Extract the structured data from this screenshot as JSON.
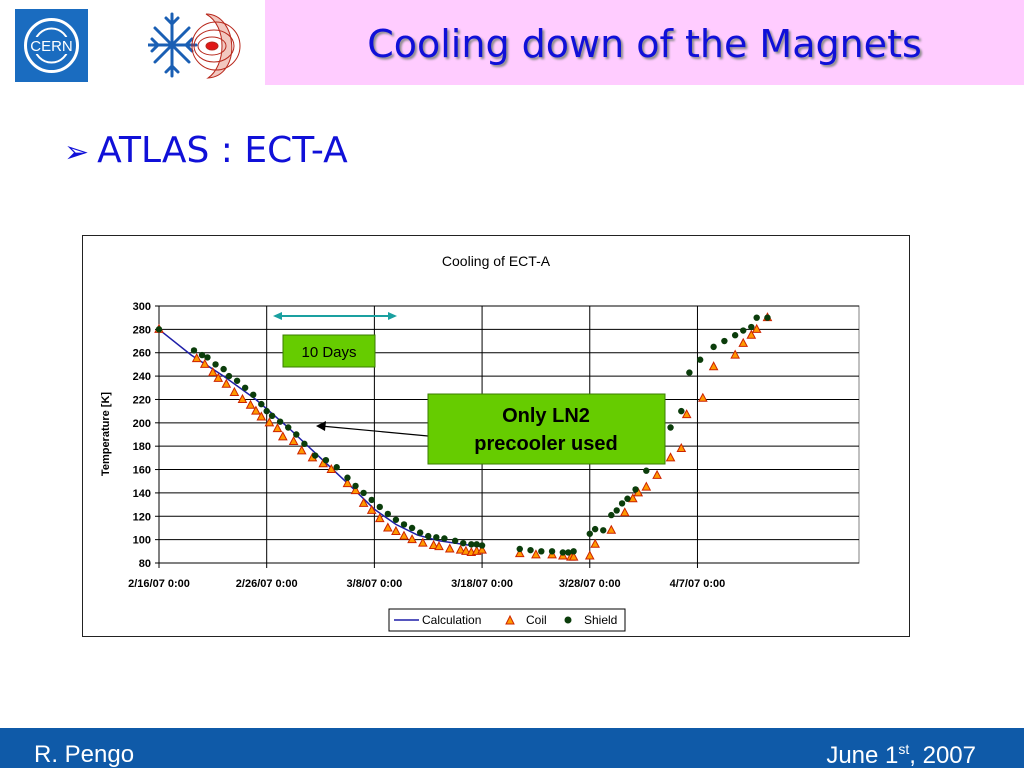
{
  "slide": {
    "title": "Cooling down of the Magnets",
    "bullet": "ATLAS : ECT-A",
    "footer_left": "R. Pengo",
    "footer_right_pre": "June 1",
    "footer_right_sup": "st",
    "footer_right_post": ", 2007",
    "logo_text": "CERN",
    "title_color": "#1010d8",
    "title_band_color": "#ffccff",
    "footer_color": "#0f5aa8"
  },
  "annotations": {
    "days_label": "10 Days",
    "ln2_line1": "Only LN2",
    "ln2_line2": "precooler used",
    "days_box_color": "#66cc00",
    "ln2_box_color": "#66cc00"
  },
  "chart_data": {
    "type": "scatter",
    "title": "Cooling of ECT-A",
    "xlabel": "",
    "ylabel": "Temperature [K]",
    "x_ticks": [
      "2/16/07 0:00",
      "2/26/07 0:00",
      "3/8/07 0:00",
      "3/18/07 0:00",
      "3/28/07 0:00",
      "4/7/07 0:00"
    ],
    "xlim": [
      "2/16/07 0:00",
      "4/22/07 0:00"
    ],
    "ylim": [
      80,
      300
    ],
    "y_ticks": [
      80,
      100,
      120,
      140,
      160,
      180,
      200,
      220,
      240,
      260,
      280,
      300
    ],
    "grid": true,
    "legend_position": "bottom-center",
    "series": [
      {
        "name": "Calculation",
        "style": "line",
        "color": "#1f1fa8",
        "x": [
          "2/16/07 0:00",
          "2/19/07 0:00",
          "2/22/07 0:00",
          "2/25/07 0:00",
          "2/28/07 0:00",
          "3/3/07 0:00",
          "3/6/07 0:00",
          "3/8/07 0:00",
          "3/10/07 0:00",
          "3/12/07 0:00",
          "3/14/07 0:00",
          "3/17/07 0:00",
          "3/18/07 0:00"
        ],
        "y": [
          280,
          258,
          240,
          220,
          196,
          170,
          144,
          126,
          113,
          104,
          99,
          95,
          94
        ]
      },
      {
        "name": "Coil",
        "style": "triangle",
        "color": "#ff9900",
        "edge_color": "#cc2200",
        "x": [
          "2/16/07 0:00",
          "2/19/07 12:00",
          "2/20/07 6:00",
          "2/21/07 0:00",
          "2/21/07 12:00",
          "2/22/07 6:00",
          "2/23/07 0:00",
          "2/23/07 18:00",
          "2/24/07 12:00",
          "2/25/07 0:00",
          "2/25/07 12:00",
          "2/26/07 6:00",
          "2/27/07 0:00",
          "2/27/07 12:00",
          "2/28/07 12:00",
          "3/1/07 6:00",
          "3/2/07 6:00",
          "3/3/07 6:00",
          "3/4/07 0:00",
          "3/5/07 12:00",
          "3/6/07 6:00",
          "3/7/07 0:00",
          "3/7/07 18:00",
          "3/8/07 12:00",
          "3/9/07 6:00",
          "3/10/07 0:00",
          "3/10/07 18:00",
          "3/11/07 12:00",
          "3/12/07 12:00",
          "3/13/07 12:00",
          "3/14/07 0:00",
          "3/15/07 0:00",
          "3/16/07 0:00",
          "3/16/07 12:00",
          "3/17/07 0:00",
          "3/17/07 12:00",
          "3/18/07 0:00",
          "3/21/07 12:00",
          "3/23/07 0:00",
          "3/24/07 12:00",
          "3/25/07 12:00",
          "3/26/07 6:00",
          "3/26/07 12:00",
          "3/28/07 0:00",
          "3/28/07 12:00",
          "3/30/07 0:00",
          "3/31/07 6:00",
          "4/1/07 0:00",
          "4/1/07 12:00",
          "4/2/07 6:00",
          "4/3/07 6:00",
          "4/4/07 12:00",
          "4/5/07 12:00",
          "4/6/07 0:00",
          "4/7/07 12:00",
          "4/8/07 12:00",
          "4/10/07 12:00",
          "4/11/07 6:00",
          "4/12/07 0:00",
          "4/12/07 12:00",
          "4/13/07 12:00"
        ],
        "y": [
          280,
          255,
          250,
          243,
          238,
          233,
          226,
          220,
          215,
          210,
          205,
          200,
          195,
          188,
          184,
          176,
          170,
          165,
          160,
          148,
          142,
          131,
          125,
          118,
          110,
          107,
          103,
          100,
          97,
          95,
          94,
          92,
          91,
          90,
          89,
          90,
          91,
          88,
          87,
          87,
          86,
          85,
          85,
          86,
          96,
          108,
          123,
          135,
          140,
          145,
          155,
          170,
          178,
          207,
          221,
          248,
          258,
          268,
          275,
          280,
          290
        ]
      },
      {
        "name": "Shield",
        "style": "circle",
        "color": "#0b3d0b",
        "x": [
          "2/16/07 0:00",
          "2/19/07 6:00",
          "2/20/07 0:00",
          "2/20/07 12:00",
          "2/21/07 6:00",
          "2/22/07 0:00",
          "2/22/07 12:00",
          "2/23/07 6:00",
          "2/24/07 0:00",
          "2/24/07 18:00",
          "2/25/07 12:00",
          "2/26/07 0:00",
          "2/26/07 12:00",
          "2/27/07 6:00",
          "2/28/07 0:00",
          "2/28/07 18:00",
          "3/1/07 12:00",
          "3/2/07 12:00",
          "3/3/07 12:00",
          "3/4/07 12:00",
          "3/5/07 12:00",
          "3/6/07 6:00",
          "3/7/07 0:00",
          "3/7/07 18:00",
          "3/8/07 12:00",
          "3/9/07 6:00",
          "3/10/07 0:00",
          "3/10/07 18:00",
          "3/11/07 12:00",
          "3/12/07 6:00",
          "3/13/07 0:00",
          "3/13/07 18:00",
          "3/14/07 12:00",
          "3/15/07 12:00",
          "3/16/07 6:00",
          "3/17/07 0:00",
          "3/17/07 12:00",
          "3/18/07 0:00",
          "3/21/07 12:00",
          "3/22/07 12:00",
          "3/23/07 12:00",
          "3/24/07 12:00",
          "3/25/07 12:00",
          "3/26/07 0:00",
          "3/26/07 12:00",
          "3/28/07 0:00",
          "3/28/07 12:00",
          "3/29/07 6:00",
          "3/30/07 0:00",
          "3/30/07 12:00",
          "3/31/07 0:00",
          "3/31/07 12:00",
          "4/1/07 6:00",
          "4/2/07 6:00",
          "4/3/07 0:00",
          "4/4/07 12:00",
          "4/5/07 12:00",
          "4/6/07 6:00",
          "4/7/07 6:00",
          "4/8/07 12:00",
          "4/9/07 12:00",
          "4/10/07 12:00",
          "4/11/07 6:00",
          "4/12/07 0:00",
          "4/12/07 12:00",
          "4/13/07 12:00"
        ],
        "y": [
          280,
          262,
          258,
          256,
          250,
          246,
          240,
          236,
          230,
          224,
          216,
          210,
          206,
          201,
          196,
          190,
          182,
          172,
          168,
          162,
          153,
          146,
          140,
          134,
          128,
          122,
          117,
          113,
          110,
          106,
          103,
          102,
          101,
          99,
          97,
          96,
          96,
          95,
          92,
          91,
          90,
          90,
          89,
          89,
          90,
          105,
          109,
          108,
          121,
          125,
          131,
          135,
          143,
          159,
          171,
          196,
          210,
          243,
          254,
          265,
          270,
          275,
          279,
          282,
          290,
          290
        ]
      }
    ]
  }
}
